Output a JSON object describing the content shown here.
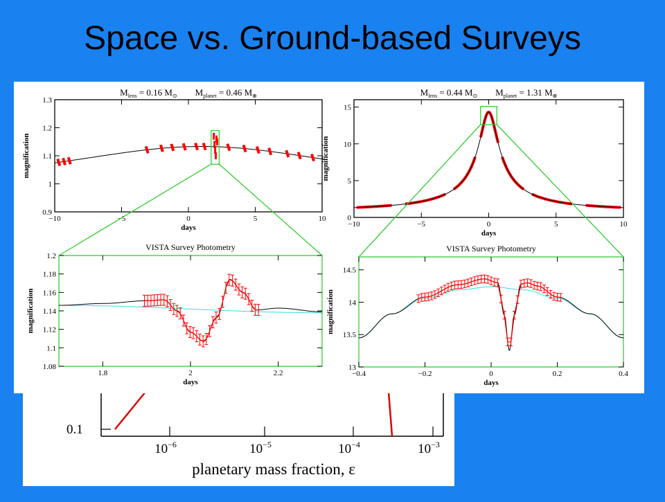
{
  "slide": {
    "title": "Space vs. Ground-based Surveys"
  },
  "colors": {
    "background": "#1a82f0",
    "data_points": "#ff0000",
    "zoom_box": "#33cc33",
    "model_curve": "#000000",
    "no_planet_curve": "#33dddd"
  },
  "chart_data": [
    {
      "id": "top-left",
      "type": "line",
      "title": "M_lens = 0.16 M_⊙     M_planet = 0.46 M_⊕",
      "title_parts": {
        "lens_label": "M",
        "lens_sub": "lens",
        "lens_val": " = 0.16 M",
        "lens_sym": "⊙",
        "planet_label": "M",
        "planet_sub": "planet",
        "planet_val": " = 0.46 M",
        "planet_sym": "⊕"
      },
      "xlabel": "days",
      "ylabel": "magnification",
      "xlim": [
        -10,
        10
      ],
      "ylim": [
        0.9,
        1.3
      ],
      "xticks": [
        -10,
        -5,
        0,
        5,
        10
      ],
      "xtick_labels": [
        "−10",
        "−5",
        "0",
        "5",
        "10"
      ],
      "yticks": [
        0.9,
        1,
        1.1,
        1.2,
        1.3
      ],
      "ytick_labels": [
        "0.9",
        "1",
        "1.1",
        "1.2",
        "1.3"
      ],
      "curve": {
        "u0": 1.5,
        "tE": 10,
        "t0": 1.0
      },
      "points_x": [
        -9.7,
        -9.3,
        -8.9,
        -3.1,
        -2.0,
        -1.2,
        -0.3,
        0.6,
        1.2,
        3.0,
        4.2,
        5.2,
        6.1,
        7.4,
        8.3,
        9.3
      ],
      "zoom_box": {
        "x": [
          1.7,
          2.3
        ],
        "y": [
          1.07,
          1.19
        ]
      },
      "anomaly_points": [
        {
          "x": 1.9,
          "y": 1.17
        },
        {
          "x": 1.95,
          "y": 1.14
        },
        {
          "x": 2.0,
          "y": 1.12
        },
        {
          "x": 2.05,
          "y": 1.1
        },
        {
          "x": 2.1,
          "y": 1.16
        },
        {
          "x": 2.15,
          "y": 1.15
        }
      ]
    },
    {
      "id": "top-right",
      "type": "line",
      "title": "M_lens = 0.44 M_⊙     M_planet = 1.31 M_⊕",
      "title_parts": {
        "lens_label": "M",
        "lens_sub": "lens",
        "lens_val": " = 0.44 M",
        "lens_sym": "⊙",
        "planet_label": "M",
        "planet_sub": "planet",
        "planet_val": " = 1.31 M",
        "planet_sym": "⊕"
      },
      "xlabel": "days",
      "ylabel": "magnification",
      "xlim": [
        -10,
        10
      ],
      "ylim": [
        0,
        16
      ],
      "xticks": [
        -10,
        -5,
        0,
        5,
        10
      ],
      "xtick_labels": [
        "−10",
        "−5",
        "0",
        "5",
        "10"
      ],
      "yticks": [
        0,
        5,
        10,
        15
      ],
      "ytick_labels": [
        "0",
        "5",
        "10",
        "15"
      ],
      "curve": {
        "u0": 0.07,
        "tE": 10,
        "t0": 0
      },
      "point_ranges": [
        [
          -9.8,
          -7.2
        ],
        [
          -6.2,
          -3.2
        ],
        [
          -2.6,
          -1.0
        ],
        [
          -0.6,
          0.7
        ],
        [
          1.0,
          2.6
        ],
        [
          3.2,
          6.2
        ],
        [
          7.2,
          9.8
        ]
      ],
      "zoom_box": {
        "x": [
          -0.4,
          0.4
        ],
        "y": [
          12.8,
          14.9
        ]
      }
    },
    {
      "id": "bottom-left",
      "type": "line",
      "title": "VISTA Survey Photometry",
      "xlabel": "days",
      "ylabel": "magnification",
      "xlim": [
        1.7,
        2.3
      ],
      "ylim": [
        1.08,
        1.2
      ],
      "xticks": [
        1.8,
        2,
        2.2
      ],
      "xtick_labels": [
        "1.8",
        "2",
        "2.2"
      ],
      "yticks": [
        1.08,
        1.1,
        1.12,
        1.14,
        1.16,
        1.18,
        1.2
      ],
      "ytick_labels": [
        "1.08",
        "1.1",
        "1.12",
        "1.14",
        "1.16",
        "1.18",
        "1.2"
      ],
      "model_x": [
        1.7,
        1.8,
        1.9,
        1.94,
        1.97,
        2.0,
        2.03,
        2.06,
        2.09,
        2.12,
        2.15,
        2.2,
        2.3
      ],
      "model_y": [
        1.146,
        1.148,
        1.151,
        1.152,
        1.14,
        1.117,
        1.107,
        1.133,
        1.174,
        1.16,
        1.141,
        1.143,
        1.139
      ],
      "baseline_x": [
        1.7,
        2.3
      ],
      "baseline_y": [
        1.146,
        1.138
      ],
      "points_x_range": [
        1.895,
        2.155
      ],
      "points_n": 36,
      "error": 0.006
    },
    {
      "id": "bottom-right",
      "type": "line",
      "title": "VISTA Survey Photometry",
      "xlabel": "days",
      "ylabel": "magnification",
      "xlim": [
        -0.4,
        0.4
      ],
      "ylim": [
        13,
        14.7
      ],
      "xticks": [
        -0.4,
        -0.2,
        0,
        0.2,
        0.4
      ],
      "xtick_labels": [
        "−0.4",
        "−0.2",
        "0",
        "0.2",
        "0.4"
      ],
      "yticks": [
        13,
        13.5,
        14,
        14.5
      ],
      "ytick_labels": [
        "13",
        "13.5",
        "14",
        "14.5"
      ],
      "model_x": [
        -0.4,
        -0.3,
        -0.2,
        -0.1,
        -0.02,
        0.02,
        0.04,
        0.055,
        0.07,
        0.09,
        0.11,
        0.14,
        0.2,
        0.3,
        0.4
      ],
      "model_y": [
        13.45,
        13.82,
        14.08,
        14.27,
        14.36,
        14.3,
        13.8,
        13.25,
        13.8,
        14.28,
        14.3,
        14.25,
        14.08,
        13.82,
        13.45
      ],
      "baseline_x": [
        -0.4,
        -0.3,
        -0.2,
        -0.1,
        0.0,
        0.1,
        0.2,
        0.3,
        0.4
      ],
      "baseline_y": [
        13.45,
        13.82,
        14.06,
        14.19,
        14.24,
        14.19,
        14.06,
        13.82,
        13.45
      ],
      "points_x_range": [
        -0.22,
        0.21
      ],
      "points_n": 44,
      "error": 0.06
    },
    {
      "id": "background-partial",
      "type": "line",
      "xlabel": "planetary mass fraction, ε",
      "ytick_labels": [
        "0.1"
      ],
      "xtick_labels": [
        "10⁻⁶",
        "10⁻⁵",
        "10⁻⁴",
        "10⁻³"
      ],
      "xtick_base": "10",
      "xtick_exps": [
        "−6",
        "−5",
        "−4",
        "−3"
      ]
    }
  ]
}
